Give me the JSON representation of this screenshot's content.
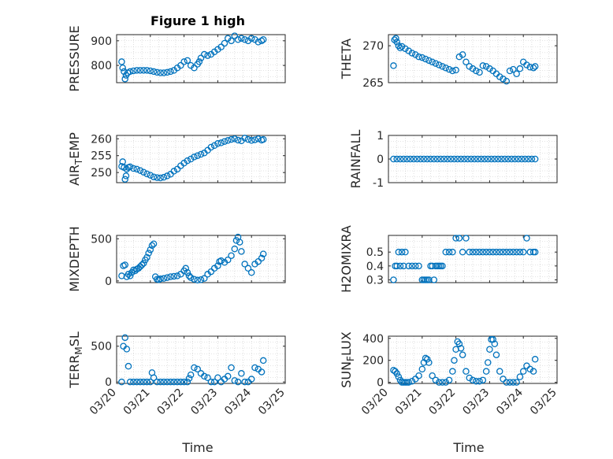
{
  "figure": {
    "title": "Figure 1 high",
    "xlabel": "Time"
  },
  "colors": {
    "marker": "#0072BD",
    "axis": "#262626",
    "grid": "#c8c8c8"
  },
  "xticks": [
    "03/20",
    "03/21",
    "03/22",
    "03/23",
    "03/24",
    "03/25"
  ],
  "chart_data": [
    {
      "type": "scatter",
      "ylabel": "PRESSURE",
      "ylabel_sub": "",
      "ylabel_tail": "",
      "ylim": [
        730,
        925
      ],
      "yticks": [
        800,
        900
      ],
      "marker": "o",
      "grid": true,
      "x": [
        0.15,
        0.18,
        0.22,
        0.25,
        0.28,
        0.33,
        0.4,
        0.5,
        0.6,
        0.7,
        0.8,
        0.9,
        1.0,
        1.1,
        1.2,
        1.3,
        1.4,
        1.5,
        1.6,
        1.7,
        1.8,
        1.9,
        2.0,
        2.1,
        2.2,
        2.3,
        2.4,
        2.45,
        2.5,
        2.6,
        2.7,
        2.8,
        2.9,
        3.0,
        3.1,
        3.2,
        3.3,
        3.4,
        3.5,
        3.6,
        3.7,
        3.8,
        3.9,
        4.0,
        4.1,
        4.2,
        4.3,
        4.35
      ],
      "y": [
        815,
        790,
        775,
        745,
        760,
        770,
        775,
        778,
        780,
        780,
        780,
        780,
        778,
        775,
        772,
        770,
        770,
        772,
        775,
        780,
        790,
        800,
        815,
        820,
        800,
        790,
        805,
        815,
        830,
        845,
        840,
        845,
        855,
        865,
        875,
        890,
        910,
        900,
        920,
        905,
        910,
        905,
        900,
        910,
        905,
        895,
        900,
        905
      ]
    },
    {
      "type": "scatter",
      "ylabel": "THETA",
      "ylabel_sub": "",
      "ylabel_tail": "",
      "ylim": [
        265,
        271.5
      ],
      "yticks": [
        265,
        270
      ],
      "marker": "o",
      "grid": true,
      "x": [
        0.15,
        0.18,
        0.22,
        0.25,
        0.3,
        0.35,
        0.4,
        0.5,
        0.6,
        0.7,
        0.8,
        0.9,
        1.0,
        1.1,
        1.2,
        1.3,
        1.4,
        1.5,
        1.6,
        1.7,
        1.8,
        1.9,
        2.0,
        2.1,
        2.2,
        2.3,
        2.4,
        2.5,
        2.6,
        2.7,
        2.8,
        2.9,
        3.0,
        3.1,
        3.2,
        3.3,
        3.4,
        3.5,
        3.6,
        3.7,
        3.8,
        3.9,
        4.0,
        4.1,
        4.2,
        4.3,
        4.35
      ],
      "y": [
        267.3,
        270.8,
        271.0,
        270.5,
        270.0,
        269.7,
        269.9,
        269.6,
        269.3,
        269.0,
        268.8,
        268.5,
        268.4,
        268.2,
        268.0,
        267.8,
        267.6,
        267.4,
        267.2,
        267.0,
        266.8,
        266.6,
        266.7,
        268.5,
        268.8,
        267.8,
        267.2,
        266.9,
        266.6,
        266.4,
        267.3,
        267.2,
        266.9,
        266.6,
        266.2,
        265.8,
        265.5,
        265.2,
        266.6,
        266.8,
        266.2,
        266.9,
        267.8,
        267.4,
        267.1,
        267.0,
        267.2
      ]
    },
    {
      "type": "scatter",
      "ylabel": "AIR",
      "ylabel_sub": "T",
      "ylabel_tail": "EMP",
      "ylim": [
        247,
        261
      ],
      "yticks": [
        250,
        255,
        260
      ],
      "marker": "o",
      "grid": true,
      "x": [
        0.15,
        0.18,
        0.22,
        0.25,
        0.28,
        0.3,
        0.35,
        0.4,
        0.5,
        0.6,
        0.7,
        0.8,
        0.9,
        1.0,
        1.1,
        1.2,
        1.3,
        1.4,
        1.5,
        1.6,
        1.7,
        1.8,
        1.9,
        2.0,
        2.1,
        2.2,
        2.3,
        2.4,
        2.5,
        2.6,
        2.7,
        2.8,
        2.9,
        3.0,
        3.1,
        3.2,
        3.3,
        3.4,
        3.5,
        3.6,
        3.7,
        3.8,
        3.9,
        4.0,
        4.1,
        4.2,
        4.3,
        4.35
      ],
      "y": [
        251.8,
        253.2,
        251.5,
        248.0,
        249.0,
        251.0,
        251.5,
        251.7,
        251.2,
        251.0,
        250.6,
        250.1,
        249.6,
        249.2,
        248.7,
        248.5,
        248.4,
        248.6,
        249.0,
        249.5,
        250.4,
        251.0,
        252.0,
        252.8,
        253.5,
        254.0,
        254.6,
        255.0,
        255.4,
        255.8,
        256.6,
        257.5,
        258.0,
        258.6,
        258.8,
        259.2,
        259.5,
        259.8,
        260.0,
        259.6,
        259.4,
        260.2,
        259.8,
        259.5,
        259.7,
        260.0,
        259.6,
        259.8
      ]
    },
    {
      "type": "scatter",
      "ylabel": "RAINFALL",
      "ylabel_sub": "",
      "ylabel_tail": "",
      "ylim": [
        -1,
        1
      ],
      "yticks": [
        -1,
        0,
        1
      ],
      "marker": "o",
      "grid": true,
      "x": [
        0.15,
        0.25,
        0.35,
        0.45,
        0.55,
        0.65,
        0.75,
        0.85,
        0.95,
        1.05,
        1.15,
        1.25,
        1.35,
        1.45,
        1.55,
        1.65,
        1.75,
        1.85,
        1.95,
        2.05,
        2.15,
        2.25,
        2.35,
        2.45,
        2.55,
        2.65,
        2.75,
        2.85,
        2.95,
        3.05,
        3.15,
        3.25,
        3.35,
        3.45,
        3.55,
        3.65,
        3.75,
        3.85,
        3.95,
        4.05,
        4.15,
        4.25,
        4.35
      ],
      "y": [
        0,
        0,
        0,
        0,
        0,
        0,
        0,
        0,
        0,
        0,
        0,
        0,
        0,
        0,
        0,
        0,
        0,
        0,
        0,
        0,
        0,
        0,
        0,
        0,
        0,
        0,
        0,
        0,
        0,
        0,
        0,
        0,
        0,
        0,
        0,
        0,
        0,
        0,
        0,
        0,
        0,
        0,
        0
      ]
    },
    {
      "type": "scatter",
      "ylabel": "MIXDEPTH",
      "ylabel_sub": "",
      "ylabel_tail": "",
      "ylim": [
        -20,
        540
      ],
      "yticks": [
        0,
        500
      ],
      "marker": "o",
      "grid": true,
      "x": [
        0.15,
        0.2,
        0.25,
        0.3,
        0.35,
        0.4,
        0.45,
        0.5,
        0.55,
        0.6,
        0.65,
        0.7,
        0.75,
        0.8,
        0.85,
        0.9,
        0.95,
        1.0,
        1.05,
        1.1,
        1.15,
        1.2,
        1.25,
        1.3,
        1.4,
        1.5,
        1.6,
        1.7,
        1.8,
        1.9,
        2.0,
        2.05,
        2.1,
        2.15,
        2.2,
        2.3,
        2.4,
        2.5,
        2.6,
        2.7,
        2.8,
        2.9,
        3.0,
        3.05,
        3.1,
        3.2,
        3.3,
        3.4,
        3.5,
        3.55,
        3.6,
        3.65,
        3.7,
        3.8,
        3.9,
        4.0,
        4.1,
        4.2,
        4.3,
        4.35
      ],
      "y": [
        60,
        180,
        190,
        50,
        80,
        60,
        100,
        130,
        120,
        140,
        150,
        170,
        190,
        210,
        250,
        280,
        330,
        370,
        420,
        440,
        50,
        20,
        15,
        25,
        30,
        40,
        50,
        55,
        60,
        80,
        120,
        150,
        100,
        60,
        40,
        20,
        10,
        15,
        30,
        80,
        110,
        150,
        180,
        230,
        240,
        220,
        250,
        300,
        380,
        480,
        520,
        460,
        350,
        200,
        150,
        100,
        200,
        230,
        270,
        320
      ]
    },
    {
      "type": "scatter",
      "ylabel": "H2OMIXRA",
      "ylabel_sub": "",
      "ylabel_tail": "",
      "ylim": [
        0.28,
        0.62
      ],
      "yticks": [
        0.3,
        0.4,
        0.5
      ],
      "marker": "o",
      "grid": true,
      "x": [
        0.15,
        0.2,
        0.25,
        0.3,
        0.35,
        0.4,
        0.45,
        0.5,
        0.6,
        0.7,
        0.8,
        0.9,
        1.0,
        1.05,
        1.1,
        1.15,
        1.2,
        1.25,
        1.3,
        1.35,
        1.4,
        1.45,
        1.5,
        1.55,
        1.6,
        1.7,
        1.8,
        1.9,
        2.0,
        2.1,
        2.2,
        2.3,
        2.4,
        2.5,
        2.6,
        2.7,
        2.8,
        2.9,
        3.0,
        3.1,
        3.2,
        3.3,
        3.4,
        3.5,
        3.6,
        3.7,
        3.8,
        3.9,
        4.0,
        4.1,
        4.2,
        4.3,
        4.35
      ],
      "y": [
        0.3,
        0.4,
        0.4,
        0.5,
        0.4,
        0.5,
        0.4,
        0.5,
        0.4,
        0.4,
        0.4,
        0.4,
        0.3,
        0.3,
        0.3,
        0.3,
        0.3,
        0.4,
        0.4,
        0.3,
        0.4,
        0.4,
        0.4,
        0.4,
        0.4,
        0.5,
        0.5,
        0.5,
        0.6,
        0.6,
        0.5,
        0.6,
        0.5,
        0.5,
        0.5,
        0.5,
        0.5,
        0.5,
        0.5,
        0.5,
        0.5,
        0.5,
        0.5,
        0.5,
        0.5,
        0.5,
        0.5,
        0.5,
        0.5,
        0.6,
        0.5,
        0.5,
        0.5
      ]
    },
    {
      "type": "scatter",
      "ylabel": "TERR",
      "ylabel_sub": "M",
      "ylabel_tail": "SL",
      "ylim": [
        -20,
        640
      ],
      "yticks": [
        0,
        500
      ],
      "marker": "o",
      "grid": true,
      "x": [
        0.15,
        0.2,
        0.25,
        0.3,
        0.35,
        0.4,
        0.5,
        0.6,
        0.7,
        0.8,
        0.9,
        1.0,
        1.05,
        1.1,
        1.2,
        1.3,
        1.4,
        1.5,
        1.6,
        1.7,
        1.8,
        1.9,
        2.0,
        2.1,
        2.15,
        2.2,
        2.3,
        2.4,
        2.5,
        2.6,
        2.7,
        2.8,
        2.9,
        3.0,
        3.1,
        3.2,
        3.3,
        3.4,
        3.5,
        3.6,
        3.7,
        3.8,
        3.9,
        4.0,
        4.1,
        4.2,
        4.3,
        4.35
      ],
      "y": [
        0,
        500,
        620,
        460,
        220,
        0,
        0,
        0,
        0,
        0,
        0,
        0,
        130,
        60,
        0,
        0,
        0,
        0,
        0,
        0,
        0,
        0,
        0,
        0,
        50,
        100,
        200,
        180,
        120,
        80,
        60,
        0,
        0,
        60,
        0,
        40,
        80,
        200,
        20,
        0,
        120,
        0,
        0,
        40,
        200,
        180,
        140,
        300
      ]
    },
    {
      "type": "scatter",
      "ylabel": "SUN",
      "ylabel_sub": "F",
      "ylabel_tail": "LUX",
      "ylim": [
        -10,
        420
      ],
      "yticks": [
        0,
        200,
        400
      ],
      "marker": "o",
      "grid": true,
      "x": [
        0.15,
        0.2,
        0.25,
        0.3,
        0.35,
        0.4,
        0.45,
        0.5,
        0.55,
        0.6,
        0.7,
        0.8,
        0.9,
        1.0,
        1.05,
        1.1,
        1.15,
        1.2,
        1.3,
        1.4,
        1.5,
        1.6,
        1.7,
        1.8,
        1.9,
        1.95,
        2.0,
        2.05,
        2.1,
        2.15,
        2.2,
        2.3,
        2.4,
        2.5,
        2.6,
        2.7,
        2.8,
        2.9,
        2.95,
        3.0,
        3.05,
        3.1,
        3.15,
        3.2,
        3.3,
        3.4,
        3.5,
        3.6,
        3.7,
        3.8,
        3.9,
        4.0,
        4.1,
        4.2,
        4.3,
        4.35
      ],
      "y": [
        110,
        100,
        80,
        50,
        20,
        0,
        0,
        0,
        0,
        0,
        10,
        30,
        60,
        120,
        180,
        220,
        210,
        180,
        60,
        20,
        0,
        0,
        0,
        20,
        100,
        200,
        300,
        370,
        350,
        310,
        250,
        100,
        40,
        20,
        10,
        10,
        20,
        100,
        180,
        300,
        390,
        390,
        350,
        250,
        100,
        30,
        0,
        0,
        0,
        0,
        50,
        100,
        150,
        120,
        100,
        210
      ]
    }
  ]
}
